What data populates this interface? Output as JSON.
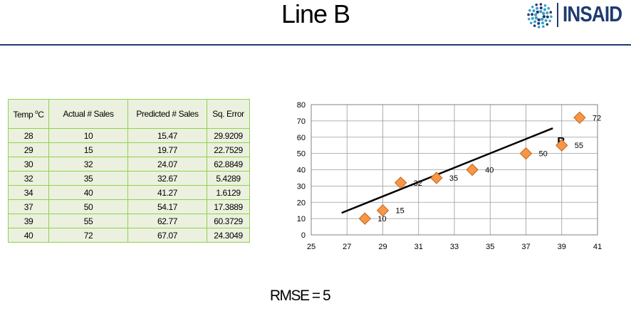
{
  "slide": {
    "title": "Line B",
    "logo_text": "INSAID",
    "rmse": "RMSE = 5"
  },
  "table": {
    "headers": [
      "Temp",
      "Actual # Sales",
      "Predicted # Sales",
      "Sq. Error"
    ],
    "temp_unit": "o",
    "temp_unit_suffix": "C",
    "rows": [
      [
        "28",
        "10",
        "15.47",
        "29.9209"
      ],
      [
        "29",
        "15",
        "19.77",
        "22.7529"
      ],
      [
        "30",
        "32",
        "24.07",
        "62.8849"
      ],
      [
        "32",
        "35",
        "32.67",
        "5.4289"
      ],
      [
        "34",
        "40",
        "41.27",
        "1.6129"
      ],
      [
        "37",
        "50",
        "54.17",
        "17.3889"
      ],
      [
        "39",
        "55",
        "62.77",
        "60.3729"
      ],
      [
        "40",
        "72",
        "67.07",
        "24.3049"
      ]
    ]
  },
  "chart_data": {
    "type": "scatter",
    "x": [
      28,
      29,
      30,
      32,
      34,
      37,
      39,
      40
    ],
    "y": [
      10,
      15,
      32,
      35,
      40,
      50,
      55,
      72
    ],
    "point_labels": [
      "10",
      "15",
      "32",
      "35",
      "40",
      "50",
      "55",
      "72"
    ],
    "marker_color": "#f79646",
    "xlim": [
      25,
      41
    ],
    "ylim": [
      0,
      80
    ],
    "xticks": [
      25,
      27,
      29,
      31,
      33,
      35,
      37,
      39,
      41
    ],
    "yticks": [
      0,
      10,
      20,
      30,
      40,
      50,
      60,
      70,
      80
    ],
    "grid": true,
    "line": {
      "x1": 26.7,
      "y1": 13.5,
      "x2": 38.5,
      "y2": 65.5,
      "label": "B",
      "color": "#000000"
    }
  },
  "colors": {
    "table_bg": "#ebf1de",
    "table_border": "#92d050",
    "brand": "#1f3b70",
    "logo_dots": "#3aa0c8"
  }
}
